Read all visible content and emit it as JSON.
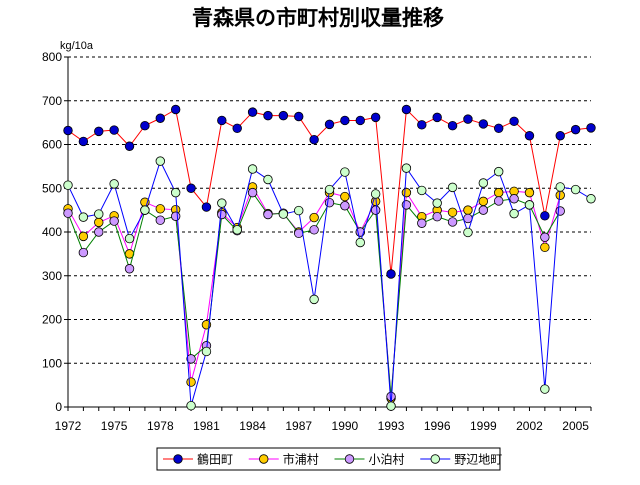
{
  "chart_data": {
    "type": "line",
    "title": "青森県の市町村別収量推移",
    "ylabel": "kg/10a",
    "xlabel": "",
    "ylim": [
      0,
      800
    ],
    "yticks": [
      0,
      100,
      200,
      300,
      400,
      500,
      600,
      700,
      800
    ],
    "xlim": [
      1972,
      2006
    ],
    "xticks": [
      1972,
      1975,
      1978,
      1981,
      1984,
      1987,
      1990,
      1993,
      1996,
      1999,
      2002,
      2005
    ],
    "grid": true,
    "legend": "bottom",
    "x": [
      1972,
      1973,
      1974,
      1975,
      1976,
      1977,
      1978,
      1979,
      1980,
      1981,
      1982,
      1983,
      1984,
      1985,
      1986,
      1987,
      1988,
      1989,
      1990,
      1991,
      1992,
      1993,
      1994,
      1995,
      1996,
      1997,
      1998,
      1999,
      2000,
      2001,
      2002,
      2003,
      2004,
      2005,
      2006
    ],
    "series": [
      {
        "name": "鶴田町",
        "line_color": "#ff0000",
        "marker_color": "#0000cc",
        "values": [
          632,
          607,
          630,
          633,
          596,
          643,
          660,
          680,
          500,
          457,
          655,
          637,
          674,
          666,
          666,
          664,
          611,
          646,
          655,
          655,
          662,
          304,
          680,
          645,
          662,
          643,
          658,
          647,
          637,
          653,
          620,
          437,
          620,
          634,
          638
        ]
      },
      {
        "name": "市浦村",
        "line_color": "#ff00ff",
        "marker_color": "#ffcc00",
        "values": [
          453,
          390,
          422,
          437,
          350,
          468,
          453,
          451,
          57,
          188,
          444,
          410,
          503,
          442,
          442,
          400,
          433,
          490,
          481,
          400,
          470,
          20,
          490,
          435,
          450,
          445,
          450,
          470,
          490,
          493,
          490,
          365,
          484,
          null,
          null
        ]
      },
      {
        "name": "小泊村",
        "line_color": "#008000",
        "marker_color": "#cc99ff",
        "values": [
          443,
          353,
          400,
          425,
          316,
          450,
          427,
          436,
          110,
          140,
          440,
          403,
          490,
          440,
          443,
          397,
          405,
          467,
          460,
          400,
          450,
          24,
          462,
          420,
          435,
          423,
          431,
          450,
          471,
          476,
          462,
          388,
          448,
          null,
          null
        ]
      },
      {
        "name": "野辺地町",
        "line_color": "#0000ff",
        "marker_color": "#ccffcc",
        "values": [
          507,
          434,
          441,
          510,
          385,
          450,
          562,
          490,
          3,
          127,
          466,
          405,
          544,
          520,
          441,
          449,
          246,
          497,
          537,
          376,
          487,
          2,
          546,
          495,
          466,
          502,
          399,
          512,
          538,
          442,
          462,
          41,
          503,
          497,
          476
        ]
      }
    ]
  }
}
